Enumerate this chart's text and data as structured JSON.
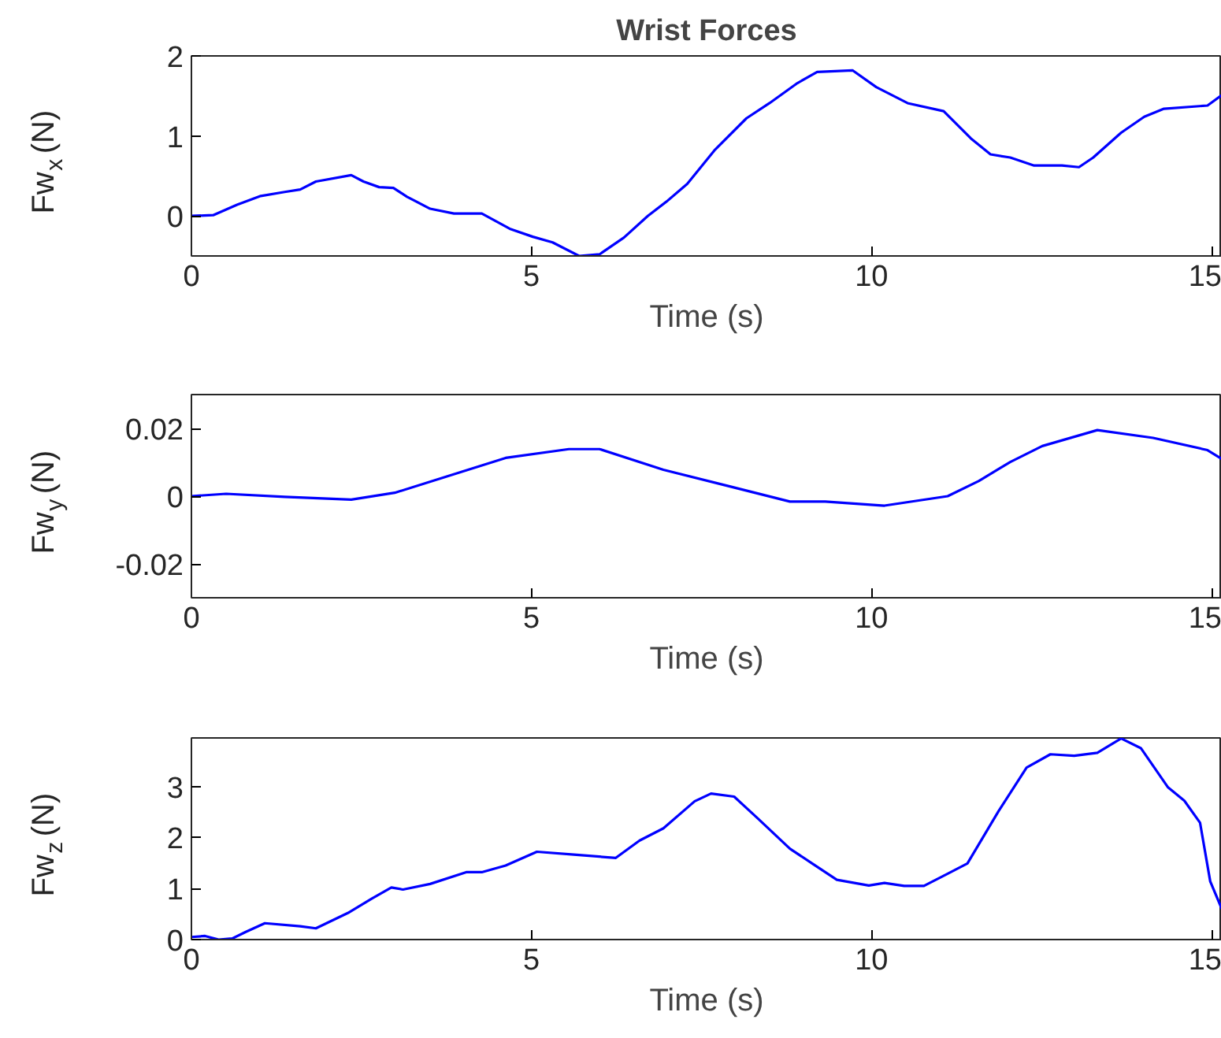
{
  "chart_data": [
    {
      "type": "line",
      "title": "Wrist Forces",
      "xlabel": "Time (s)",
      "ylabel": "Fw$_{x}$ (N)",
      "xlim": [
        0,
        15.15
      ],
      "xticks": [
        0,
        5,
        10,
        15
      ],
      "ylim": [
        -0.5,
        2
      ],
      "yticks": [
        0,
        1,
        2
      ],
      "grid": false,
      "series": [
        {
          "color": "#0000ff",
          "x": [
            0,
            0.32,
            0.67,
            1.02,
            1.37,
            1.6,
            1.83,
            2.35,
            2.53,
            2.76,
            2.97,
            3.17,
            3.51,
            3.86,
            4.27,
            4.68,
            5.02,
            5.31,
            5.7,
            6.0,
            6.36,
            6.71,
            7.0,
            7.29,
            7.69,
            8.16,
            8.5,
            8.91,
            9.2,
            9.72,
            10.07,
            10.53,
            11.06,
            11.46,
            11.75,
            12.04,
            12.39,
            12.8,
            13.05,
            13.26,
            13.67,
            14.01,
            14.3,
            14.94,
            15.15
          ],
          "values": [
            0,
            0.01,
            0.14,
            0.25,
            0.3,
            0.33,
            0.43,
            0.51,
            0.43,
            0.36,
            0.35,
            0.24,
            0.09,
            0.03,
            0.03,
            -0.16,
            -0.26,
            -0.33,
            -0.5,
            -0.48,
            -0.27,
            0,
            0.19,
            0.4,
            0.82,
            1.22,
            1.41,
            1.66,
            1.8,
            1.82,
            1.61,
            1.41,
            1.31,
            0.97,
            0.77,
            0.73,
            0.63,
            0.63,
            0.61,
            0.73,
            1.04,
            1.24,
            1.34,
            1.38,
            1.51
          ]
        }
      ]
    },
    {
      "type": "line",
      "xlabel": "Time (s)",
      "ylabel": "Fw$_{y}$ (N)",
      "xlim": [
        0,
        15.15
      ],
      "xticks": [
        0,
        5,
        10,
        15
      ],
      "ylim": [
        -0.03,
        0.03
      ],
      "yticks": [
        -0.02,
        0,
        0.02
      ],
      "grid": false,
      "series": [
        {
          "color": "#0000ff",
          "x": [
            0,
            0.51,
            1.37,
            2.35,
            2.99,
            3.69,
            4.62,
            5.55,
            6.0,
            6.94,
            7.87,
            8.8,
            9.32,
            10.19,
            11.12,
            11.58,
            12.04,
            12.51,
            13.32,
            14.14,
            14.94,
            15.15
          ],
          "values": [
            0,
            0.0007,
            -0.0002,
            -0.001,
            0.001,
            0.0054,
            0.0113,
            0.0139,
            0.0139,
            0.0078,
            0.0031,
            -0.0016,
            -0.0016,
            -0.0028,
            0,
            0.0045,
            0.0101,
            0.0148,
            0.0195,
            0.0172,
            0.0136,
            0.011
          ]
        }
      ]
    },
    {
      "type": "line",
      "xlabel": "Time (s)",
      "ylabel": "Fw$_{z}$ (N)",
      "xlim": [
        0,
        15.15
      ],
      "xticks": [
        0,
        5,
        10,
        15
      ],
      "ylim": [
        0,
        3.95
      ],
      "yticks": [
        0,
        1,
        2,
        3
      ],
      "grid": false,
      "series": [
        {
          "color": "#0000ff",
          "x": [
            0,
            0.2,
            0.4,
            0.6,
            0.8,
            1.08,
            1.6,
            1.83,
            2.3,
            2.65,
            2.94,
            3.11,
            3.51,
            4.04,
            4.27,
            4.62,
            5.08,
            5.66,
            6.24,
            6.59,
            6.94,
            7.4,
            7.64,
            7.98,
            8.33,
            8.8,
            9.14,
            9.49,
            9.96,
            10.19,
            10.48,
            10.77,
            11.12,
            11.41,
            11.87,
            12.28,
            12.63,
            12.98,
            13.32,
            13.67,
            13.96,
            14.36,
            14.6,
            14.83,
            14.98,
            15.15
          ],
          "values": [
            0.05,
            0.07,
            0,
            0.02,
            0.15,
            0.32,
            0.26,
            0.22,
            0.52,
            0.8,
            1.02,
            0.98,
            1.09,
            1.32,
            1.32,
            1.45,
            1.72,
            1.66,
            1.6,
            1.94,
            2.18,
            2.71,
            2.86,
            2.8,
            2.37,
            1.78,
            1.48,
            1.17,
            1.06,
            1.11,
            1.05,
            1.05,
            1.29,
            1.49,
            2.52,
            3.37,
            3.63,
            3.6,
            3.66,
            3.94,
            3.75,
            2.98,
            2.72,
            2.29,
            1.14,
            0.6
          ]
        }
      ]
    }
  ]
}
